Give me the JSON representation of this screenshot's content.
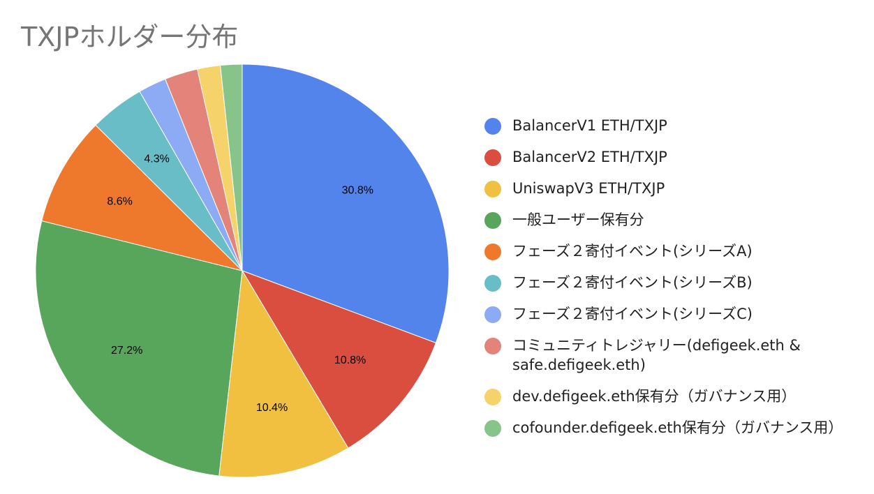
{
  "chart_data": {
    "type": "pie",
    "title": "TXJPホルダー分布",
    "legend_position": "right",
    "slices": [
      {
        "name": "BalancerV1 ETH/TXJP",
        "value": 30.8,
        "label": "30.8%",
        "color": "#5384ec"
      },
      {
        "name": "BalancerV2 ETH/TXJP",
        "value": 10.8,
        "label": "10.8%",
        "color": "#da4e40"
      },
      {
        "name": "UniswapV3 ETH/TXJP",
        "value": 10.4,
        "label": "10.4%",
        "color": "#f1c040"
      },
      {
        "name": "一般ユーザー保有分",
        "value": 27.2,
        "label": "27.2%",
        "color": "#58a65c"
      },
      {
        "name": "フェーズ２寄付イベント(シリーズA)",
        "value": 8.6,
        "label": "8.6%",
        "color": "#ee792d"
      },
      {
        "name": "フェーズ２寄付イベント(シリーズB)",
        "value": 4.3,
        "label": "4.3%",
        "color": "#69bdc6"
      },
      {
        "name": "フェーズ２寄付イベント(シリーズC)",
        "value": 2.2,
        "label": "",
        "color": "#8cabf4"
      },
      {
        "name": "コミュニティトレジャリー(defigeek.eth & safe.defigeek.eth)",
        "value": 2.6,
        "label": "",
        "color": "#e3837a"
      },
      {
        "name": "dev.defigeek.eth保有分（ガバナンス用）",
        "value": 1.8,
        "label": "",
        "color": "#f6d36a"
      },
      {
        "name": "cofounder.defigeek.eth保有分（ガバナンス用）",
        "value": 1.7,
        "label": "",
        "color": "#86c48a"
      }
    ]
  }
}
